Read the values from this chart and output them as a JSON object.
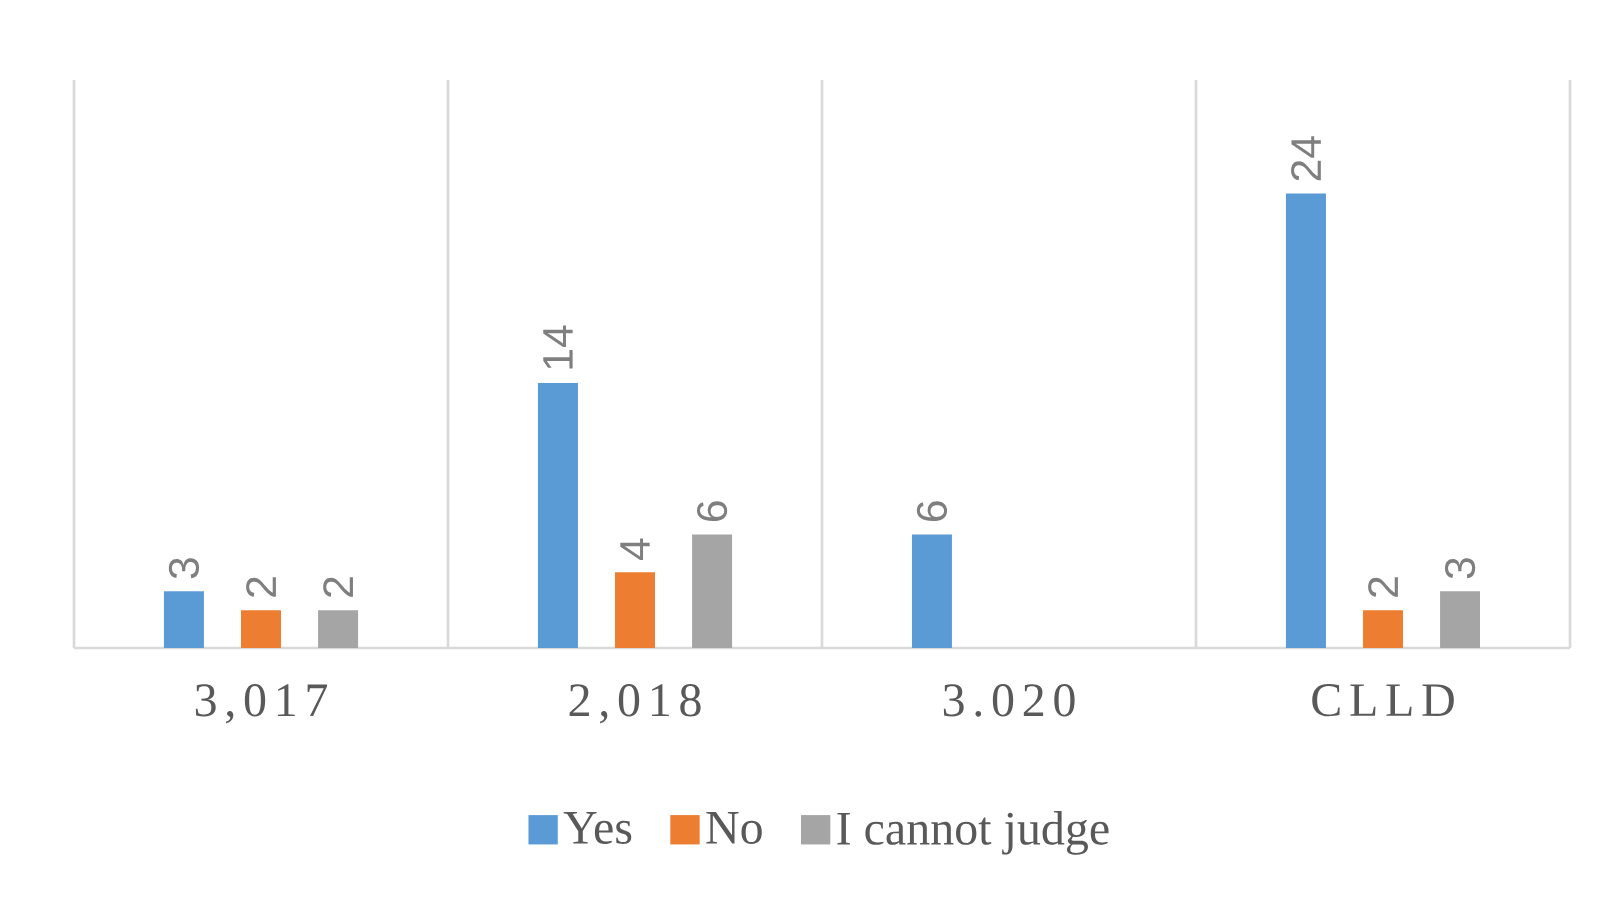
{
  "chart_data": {
    "type": "bar",
    "categories": [
      "3,017",
      "2,018",
      "3.020",
      "CLLD"
    ],
    "series": [
      {
        "name": "Yes",
        "color": "#5b9bd5",
        "values": [
          3,
          14,
          6,
          24
        ]
      },
      {
        "name": "No",
        "color": "#ed7d31",
        "values": [
          2,
          4,
          null,
          2
        ]
      },
      {
        "name": "I cannot judge",
        "color": "#a5a5a5",
        "values": [
          2,
          6,
          null,
          3
        ]
      }
    ],
    "ylim": [
      0,
      30
    ],
    "data_labels": true,
    "grid": "x",
    "legend": "bottom",
    "tick_labels": "x"
  }
}
